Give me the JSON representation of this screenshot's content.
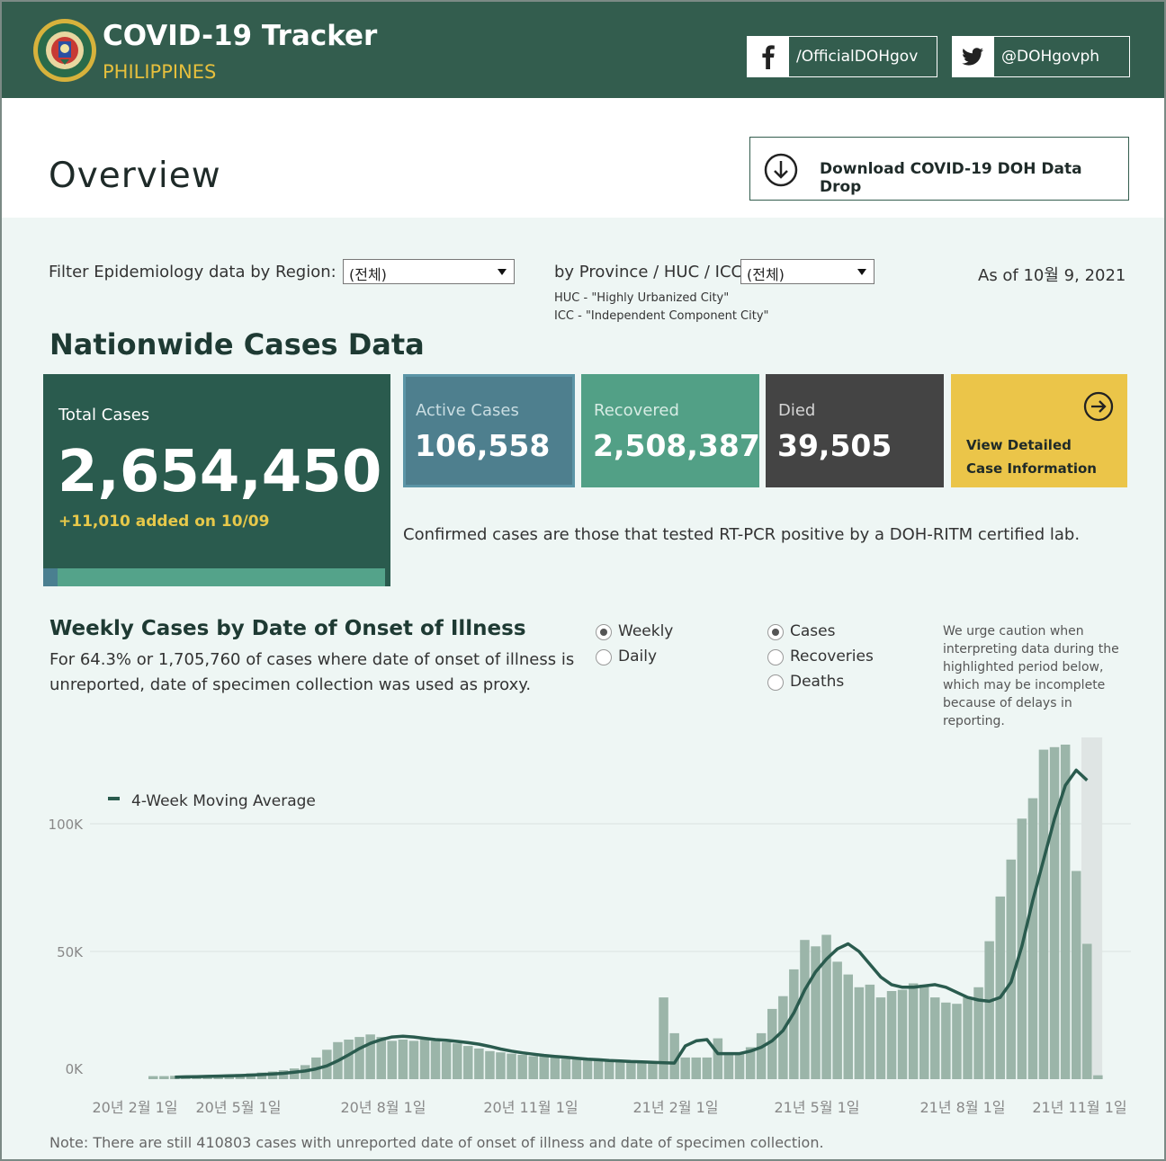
{
  "header": {
    "title": "COVID-19 Tracker",
    "subtitle": "PHILIPPINES",
    "facebook": "/OfficialDOHgov",
    "twitter": "@DOHgovph"
  },
  "overview": {
    "title": "Overview",
    "download_label": "Download COVID-19 DOH Data Drop"
  },
  "filters": {
    "region_label": "Filter Epidemiology data by Region:",
    "region_value": "(전체)",
    "province_label": "by Province / HUC / ICC:",
    "province_value": "(전체)",
    "huc_note": "HUC - \"Highly Urbanized City\"",
    "icc_note": "ICC - \"Independent Component City\"",
    "as_of": "As of 10월 9, 2021"
  },
  "nationwide": {
    "title": "Nationwide Cases Data",
    "total_label": "Total Cases",
    "total_value": "2,654,450",
    "added": "+11,010 added on 10/09",
    "active_label": "Active Cases",
    "active_value": "106,558",
    "recovered_label": "Recovered",
    "recovered_value": "2,508,387",
    "died_label": "Died",
    "died_value": "39,505",
    "view_line1": "View Detailed",
    "view_line2": "Case Information",
    "confirmed_note": "Confirmed cases are those that tested RT-PCR positive by a DOH-RITM certified lab."
  },
  "weekly": {
    "title": "Weekly Cases by Date of Onset of Illness",
    "subtitle": "For 64.3% or 1,705,760 of cases where date of onset of illness is unreported, date of specimen collection was used as proxy.",
    "period_options": [
      {
        "label": "Weekly",
        "selected": true
      },
      {
        "label": "Daily",
        "selected": false
      }
    ],
    "metric_options": [
      {
        "label": "Cases",
        "selected": true
      },
      {
        "label": "Recoveries",
        "selected": false
      },
      {
        "label": "Deaths",
        "selected": false
      }
    ],
    "caution": "We urge caution when interpreting data during the highlighted period below, which may be incomplete because of delays in reporting.",
    "footnote": "Note: There are still 410803 cases with unreported date of onset of illness and date of specimen collection."
  },
  "chart_data": {
    "type": "bar",
    "legend": "4-Week Moving Average",
    "legend_placement": "top-left",
    "ylim": [
      0,
      130000
    ],
    "yticks": [
      0,
      50000,
      100000
    ],
    "ytick_labels": [
      "0K",
      "50K",
      "100K"
    ],
    "xtick_labels": [
      "20년 2월 1일",
      "20년 5월 1일",
      "20년 8월 1일",
      "20년 11월 1일",
      "21년 2월 1일",
      "21년 5월 1일",
      "21년 8월 1일",
      "21년 11월 1일"
    ],
    "highlighted_period": "last 2 weeks",
    "bar_color": "#9bb5a9",
    "line_color": "#2a5b4e",
    "highlight_color": "#dfe5e4",
    "weekly_cases": [
      1200,
      1200,
      1300,
      1400,
      1500,
      1600,
      1700,
      1800,
      2000,
      2300,
      2600,
      3000,
      3500,
      4200,
      5500,
      8500,
      11500,
      14500,
      15500,
      16500,
      17500,
      16500,
      15000,
      15500,
      15000,
      15500,
      15000,
      14500,
      14000,
      13000,
      12000,
      11000,
      10500,
      10000,
      9500,
      9000,
      9000,
      8500,
      8000,
      8000,
      7500,
      7500,
      7000,
      7000,
      7000,
      6500,
      6500,
      32000,
      18000,
      8500,
      8500,
      8500,
      16000,
      9500,
      10500,
      12500,
      18000,
      27500,
      32500,
      43000,
      54500,
      52000,
      56500,
      46000,
      41000,
      36000,
      37000,
      32000,
      34500,
      35000,
      37500,
      37000,
      32000,
      30000,
      29500,
      32000,
      36000,
      54000,
      71500,
      86000,
      102000,
      110000,
      129000,
      130000,
      131000,
      81500,
      53000,
      1500
    ],
    "moving_average": [
      800,
      900,
      1000,
      1100,
      1200,
      1300,
      1400,
      1600,
      1800,
      2000,
      2300,
      2700,
      3200,
      4000,
      5200,
      7200,
      9500,
      12000,
      14000,
      15500,
      16500,
      16800,
      16500,
      16000,
      15500,
      15200,
      14800,
      14300,
      13700,
      12800,
      11800,
      11000,
      10300,
      9800,
      9300,
      8900,
      8600,
      8200,
      7800,
      7600,
      7300,
      7100,
      6900,
      6800,
      6600,
      6400,
      6300,
      13000,
      15000,
      15500,
      10000,
      10000,
      10000,
      11000,
      12500,
      15000,
      19000,
      26000,
      35000,
      42000,
      47000,
      51000,
      53000,
      50000,
      45000,
      40000,
      37000,
      36000,
      36000,
      36500,
      37000,
      36000,
      34000,
      32000,
      31000,
      30500,
      32000,
      38000,
      52000,
      70000,
      86000,
      102000,
      115000,
      121000,
      117000
    ]
  }
}
